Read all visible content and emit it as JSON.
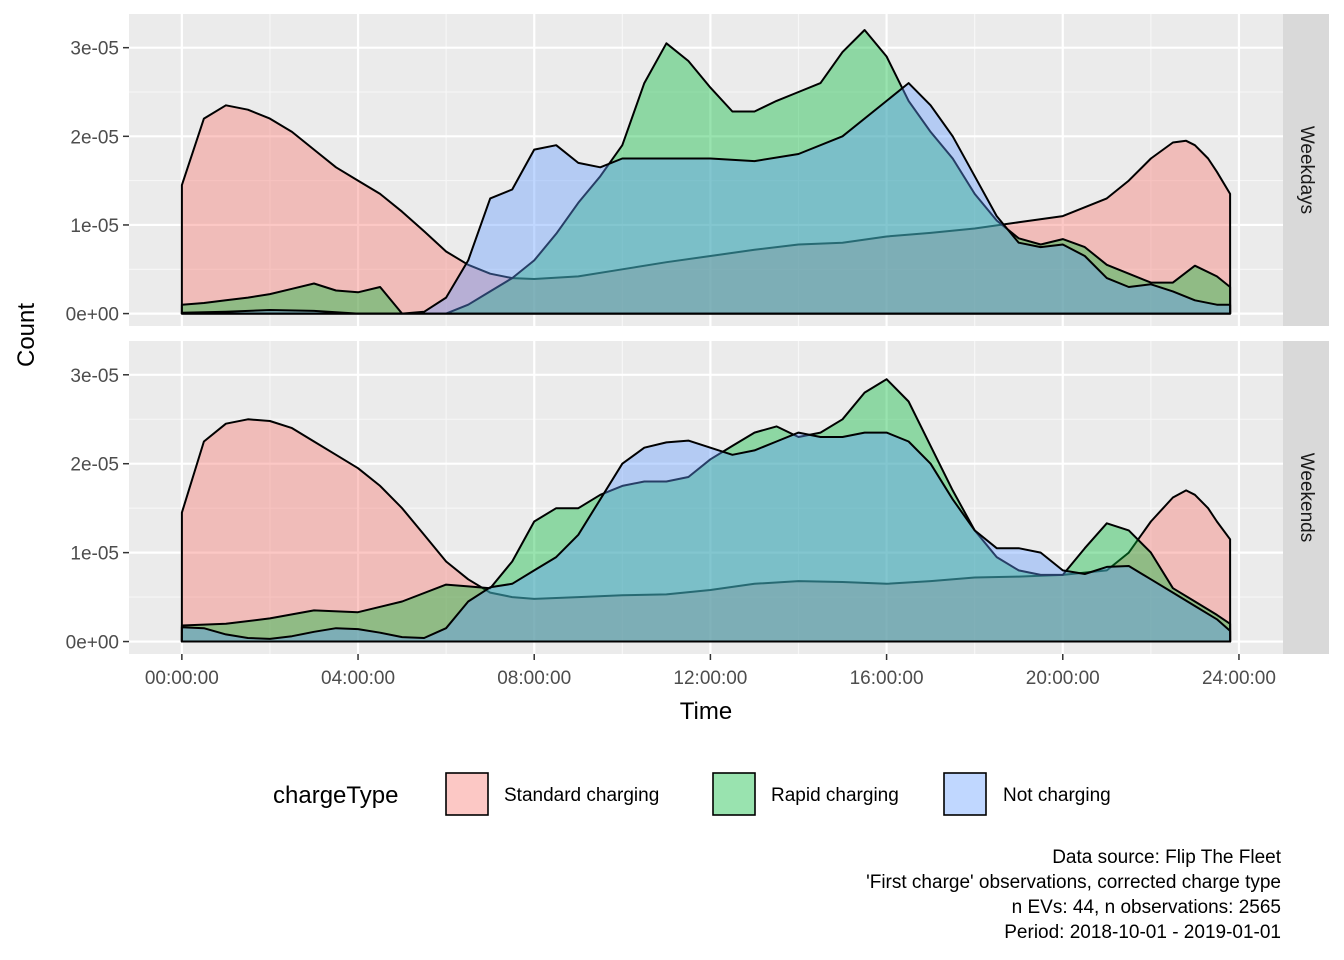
{
  "chart_data": {
    "type": "area",
    "xlabel": "Time",
    "ylabel": "Count",
    "x_ticks": [
      "00:00:00",
      "04:00:00",
      "08:00:00",
      "12:00:00",
      "16:00:00",
      "20:00:00",
      "24:00:00"
    ],
    "y_ticks": [
      "0e+00",
      "1e-05",
      "2e-05",
      "3e-05"
    ],
    "xlim_hours": [
      -1.2,
      25.0
    ],
    "ylim": [
      -1.4e-06,
      3.38e-05
    ],
    "grid": true,
    "legend": {
      "title": "chargeType",
      "position": "bottom",
      "entries": [
        "Standard charging",
        "Rapid charging",
        "Not charging"
      ]
    },
    "series_colors": {
      "Standard charging": "#F8766D",
      "Rapid charging": "#00BA38",
      "Not charging": "#619CFF"
    },
    "caption": [
      "Data source: Flip The Fleet",
      "'First charge' observations, corrected charge type",
      "n EVs: 44, n observations: 2565",
      "Period: 2018-10-01 - 2019-01-01"
    ],
    "panels": [
      {
        "label": "Weekdays",
        "series": [
          {
            "name": "Standard charging",
            "x": [
              0,
              0.5,
              1,
              1.5,
              2,
              2.5,
              3,
              3.5,
              4,
              4.5,
              5,
              5.5,
              6,
              6.5,
              7,
              7.5,
              8,
              9,
              10,
              11,
              12,
              13,
              14,
              15,
              16,
              17,
              18,
              19,
              20,
              21,
              21.5,
              22,
              22.5,
              22.8,
              23,
              23.3,
              23.5,
              23.8
            ],
            "y": [
              1.45e-05,
              2.2e-05,
              2.35e-05,
              2.3e-05,
              2.2e-05,
              2.05e-05,
              1.85e-05,
              1.65e-05,
              1.5e-05,
              1.35e-05,
              1.15e-05,
              9.3e-06,
              7e-06,
              5.5e-06,
              4.5e-06,
              4e-06,
              3.9e-06,
              4.2e-06,
              5e-06,
              5.8e-06,
              6.5e-06,
              7.2e-06,
              7.8e-06,
              8e-06,
              8.7e-06,
              9.1e-06,
              9.6e-06,
              1.03e-05,
              1.1e-05,
              1.3e-05,
              1.5e-05,
              1.75e-05,
              1.93e-05,
              1.95e-05,
              1.9e-05,
              1.75e-05,
              1.6e-05,
              1.35e-05
            ]
          },
          {
            "name": "Rapid charging",
            "x": [
              0,
              0.5,
              1,
              1.5,
              2,
              2.5,
              3,
              3.5,
              4,
              4.5,
              5,
              5.5,
              6,
              6.5,
              7,
              7.5,
              8,
              8.5,
              9,
              9.5,
              10,
              10.5,
              11,
              11.5,
              12,
              12.5,
              13,
              13.5,
              14,
              14.5,
              15,
              15.5,
              16,
              16.5,
              17,
              17.5,
              18,
              18.5,
              19,
              19.5,
              20,
              20.5,
              21,
              21.5,
              22,
              22.5,
              23,
              23.5,
              23.8
            ],
            "y": [
              1e-06,
              1.2e-06,
              1.5e-06,
              1.8e-06,
              2.2e-06,
              2.8e-06,
              3.4e-06,
              2.6e-06,
              2.4e-06,
              3e-06,
              0,
              0,
              0,
              1e-06,
              2.5e-06,
              4e-06,
              6e-06,
              9e-06,
              1.25e-05,
              1.55e-05,
              1.9e-05,
              2.6e-05,
              3.05e-05,
              2.85e-05,
              2.55e-05,
              2.28e-05,
              2.28e-05,
              2.4e-05,
              2.5e-05,
              2.6e-05,
              2.95e-05,
              3.2e-05,
              2.9e-05,
              2.4e-05,
              2.05e-05,
              1.75e-05,
              1.35e-05,
              1.05e-05,
              8.5e-06,
              7.8e-06,
              8.4e-06,
              7.5e-06,
              5.5e-06,
              4.5e-06,
              3.5e-06,
              3.5e-06,
              5.4e-06,
              4.2e-06,
              3e-06
            ]
          },
          {
            "name": "Not charging",
            "x": [
              0,
              1,
              2,
              3,
              4,
              5,
              5.5,
              6,
              6.5,
              7,
              7.5,
              8,
              8.5,
              9,
              9.5,
              10,
              11,
              12,
              13,
              14,
              15,
              16,
              16.5,
              17,
              17.5,
              18,
              18.5,
              19,
              19.5,
              20,
              20.5,
              21,
              21.5,
              22,
              22.5,
              23,
              23.5,
              23.8
            ],
            "y": [
              1e-07,
              2e-07,
              4e-07,
              3e-07,
              0,
              0,
              2e-07,
              1.8e-06,
              6e-06,
              1.3e-05,
              1.4e-05,
              1.85e-05,
              1.9e-05,
              1.7e-05,
              1.65e-05,
              1.75e-05,
              1.75e-05,
              1.75e-05,
              1.72e-05,
              1.8e-05,
              2e-05,
              2.4e-05,
              2.6e-05,
              2.35e-05,
              2e-05,
              1.55e-05,
              1.1e-05,
              8e-06,
              7.5e-06,
              7.8e-06,
              6.5e-06,
              4e-06,
              3e-06,
              3.3e-06,
              2.5e-06,
              1.5e-06,
              1e-06,
              1e-06
            ]
          }
        ]
      },
      {
        "label": "Weekends",
        "series": [
          {
            "name": "Standard charging",
            "x": [
              0,
              0.5,
              1,
              1.5,
              2,
              2.5,
              3,
              3.5,
              4,
              4.5,
              5,
              5.5,
              6,
              6.5,
              7,
              7.5,
              8,
              9,
              10,
              11,
              12,
              13,
              14,
              15,
              16,
              17,
              18,
              19,
              20,
              21,
              21.5,
              22,
              22.5,
              22.8,
              23,
              23.3,
              23.5,
              23.8
            ],
            "y": [
              1.45e-05,
              2.25e-05,
              2.45e-05,
              2.5e-05,
              2.48e-05,
              2.4e-05,
              2.25e-05,
              2.1e-05,
              1.95e-05,
              1.75e-05,
              1.5e-05,
              1.2e-05,
              9e-06,
              7e-06,
              5.5e-06,
              5e-06,
              4.8e-06,
              5e-06,
              5.2e-06,
              5.3e-06,
              5.8e-06,
              6.5e-06,
              6.8e-06,
              6.7e-06,
              6.5e-06,
              6.8e-06,
              7.2e-06,
              7.3e-06,
              7.5e-06,
              8e-06,
              1e-05,
              1.35e-05,
              1.62e-05,
              1.7e-05,
              1.65e-05,
              1.5e-05,
              1.35e-05,
              1.15e-05
            ]
          },
          {
            "name": "Rapid charging",
            "x": [
              0,
              1,
              2,
              3,
              4,
              5,
              6,
              6.5,
              7,
              7.5,
              8,
              8.5,
              9,
              9.5,
              10,
              10.5,
              11,
              11.5,
              12,
              12.5,
              13,
              13.5,
              14,
              14.5,
              15,
              15.5,
              16,
              16.5,
              17,
              17.5,
              18,
              18.5,
              19,
              19.5,
              20,
              20.5,
              21,
              21.5,
              22,
              22.5,
              23,
              23.5,
              23.8
            ],
            "y": [
              1.8e-06,
              2e-06,
              2.6e-06,
              3.5e-06,
              3.3e-06,
              4.5e-06,
              6.4e-06,
              6.2e-06,
              6e-06,
              9e-06,
              1.35e-05,
              1.5e-05,
              1.5e-05,
              1.65e-05,
              1.75e-05,
              1.8e-05,
              1.8e-05,
              1.85e-05,
              2.05e-05,
              2.2e-05,
              2.35e-05,
              2.42e-05,
              2.3e-05,
              2.35e-05,
              2.5e-05,
              2.8e-05,
              2.95e-05,
              2.7e-05,
              2.2e-05,
              1.7e-05,
              1.25e-05,
              9.5e-06,
              8e-06,
              7.5e-06,
              7.5e-06,
              1.05e-05,
              1.33e-05,
              1.25e-05,
              1e-05,
              6e-06,
              4.5e-06,
              3e-06,
              2e-06
            ]
          },
          {
            "name": "Not charging",
            "x": [
              0,
              0.5,
              1,
              1.5,
              2,
              2.5,
              3,
              3.5,
              4,
              4.5,
              5,
              5.5,
              6,
              6.5,
              7,
              7.5,
              8,
              8.5,
              9,
              9.5,
              10,
              10.5,
              11,
              11.5,
              12,
              12.5,
              13,
              13.5,
              14,
              14.5,
              15,
              15.5,
              16,
              16.5,
              17,
              17.5,
              18,
              18.5,
              19,
              19.5,
              20,
              20.5,
              21,
              21.5,
              22,
              22.5,
              23,
              23.5,
              23.8
            ],
            "y": [
              1.6e-06,
              1.5e-06,
              8e-07,
              4e-07,
              3e-07,
              6e-07,
              1.1e-06,
              1.5e-06,
              1.4e-06,
              1e-06,
              5e-07,
              4e-07,
              1.5e-06,
              4.5e-06,
              6.1e-06,
              6.5e-06,
              8e-06,
              9.5e-06,
              1.2e-05,
              1.6e-05,
              2e-05,
              2.18e-05,
              2.24e-05,
              2.26e-05,
              2.18e-05,
              2.1e-05,
              2.15e-05,
              2.25e-05,
              2.35e-05,
              2.3e-05,
              2.3e-05,
              2.35e-05,
              2.35e-05,
              2.25e-05,
              2e-05,
              1.6e-05,
              1.25e-05,
              1.05e-05,
              1.05e-05,
              1e-05,
              8e-06,
              7.6e-06,
              8.4e-06,
              8.5e-06,
              7e-06,
              5.5e-06,
              4e-06,
              2.5e-06,
              1.2e-06
            ]
          }
        ]
      }
    ]
  }
}
